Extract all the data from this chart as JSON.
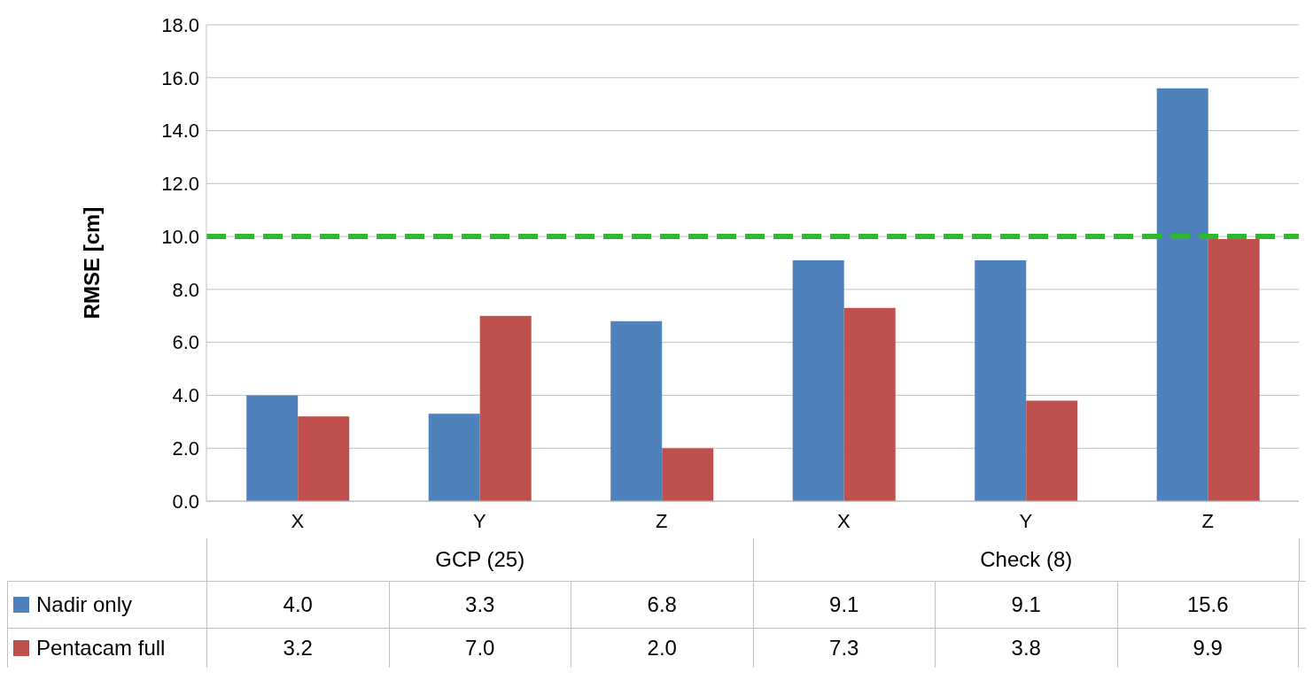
{
  "chart_data": {
    "type": "bar",
    "ylabel": "RMSE [cm]",
    "categories": [
      "X",
      "Y",
      "Z",
      "X",
      "Y",
      "Z"
    ],
    "annotations": [
      "GCP (25)",
      "Check (8)"
    ],
    "series": [
      {
        "name": "Nadir only",
        "color": "#4f81bd",
        "values": [
          4.0,
          3.3,
          6.8,
          9.1,
          9.1,
          15.6
        ],
        "value_labels": [
          "4.0",
          "3.3",
          "6.8",
          "9.1",
          "9.1",
          "15.6"
        ]
      },
      {
        "name": "Pentacam full",
        "color": "#c0504d",
        "values": [
          3.2,
          7.0,
          2.0,
          7.3,
          3.8,
          9.9
        ],
        "value_labels": [
          "3.2",
          "7.0",
          "2.0",
          "7.3",
          "3.8",
          "9.9"
        ]
      }
    ],
    "ylim": [
      0,
      18
    ],
    "yticks": [
      {
        "value": 0,
        "label": "0.0"
      },
      {
        "value": 2,
        "label": "2.0"
      },
      {
        "value": 4,
        "label": "4.0"
      },
      {
        "value": 6,
        "label": "6.0"
      },
      {
        "value": 8,
        "label": "8.0"
      },
      {
        "value": 10,
        "label": "10.0"
      },
      {
        "value": 12,
        "label": "12.0"
      },
      {
        "value": 14,
        "label": "14.0"
      },
      {
        "value": 16,
        "label": "16.0"
      },
      {
        "value": 18,
        "label": "18.0"
      }
    ],
    "ref_lines": [
      {
        "axis": "y",
        "value": 10,
        "color": "#2eb82e",
        "line_style": "dashed"
      }
    ],
    "grid": "y",
    "legend": "bottom"
  }
}
